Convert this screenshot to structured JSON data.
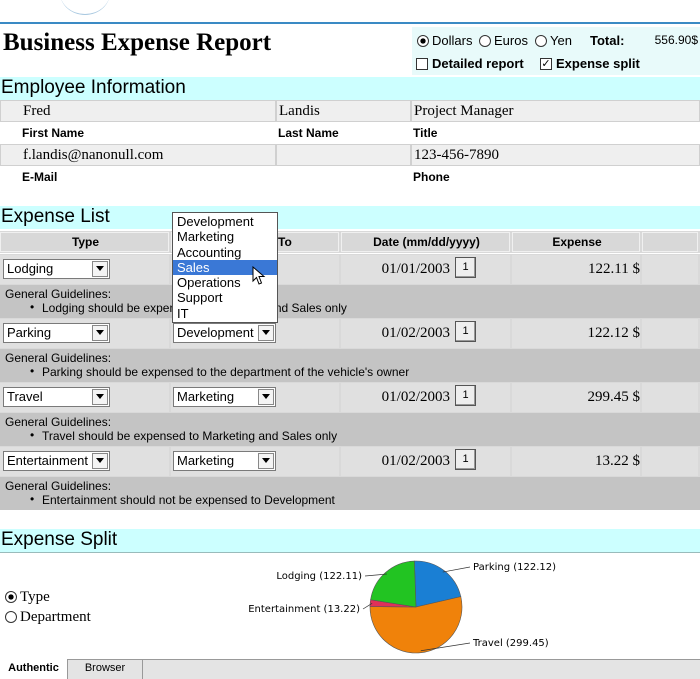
{
  "header": {
    "title": "Business Expense Report",
    "currencies": [
      "Dollars",
      "Euros",
      "Yen"
    ],
    "currency_selected": 0,
    "total_label": "Total:",
    "total": "556.90$",
    "options": [
      "Detailed report",
      "Expense split"
    ],
    "options_checked": [
      false,
      true
    ]
  },
  "employee": {
    "title": "Employee Information",
    "rows": [
      [
        {
          "value": "Fred",
          "label": "First Name"
        },
        {
          "value": "Landis",
          "label": "Last Name"
        },
        {
          "value": "Project Manager",
          "label": "Title"
        }
      ],
      [
        {
          "value": "f.landis@nanonull.com",
          "label": "E-Mail"
        },
        {
          "value": "",
          "label": ""
        },
        {
          "value": "123-456-7890",
          "label": "Phone"
        }
      ]
    ]
  },
  "expense_list": {
    "title": "Expense List",
    "columns": [
      "Type",
      "To",
      "Date (mm/dd/yyyy)",
      "Expense"
    ],
    "calendar_icon": "1",
    "rows": [
      {
        "type": "Lodging",
        "department": null,
        "date": "01/01/2003",
        "amount": "122.11 $",
        "guideline_heading": "General Guidelines:",
        "guideline": "Lodging should be expensed to Marketing and Sales only"
      },
      {
        "type": "Parking",
        "department": "Development",
        "date": "01/02/2003",
        "amount": "122.12 $",
        "guideline_heading": "General Guidelines:",
        "guideline": "Parking should be expensed to the department of the vehicle's owner"
      },
      {
        "type": "Travel",
        "department": "Marketing",
        "date": "01/02/2003",
        "amount": "299.45 $",
        "guideline_heading": "General Guidelines:",
        "guideline": "Travel should be expensed to Marketing and Sales only"
      },
      {
        "type": "Entertainment",
        "department": "Marketing",
        "date": "01/02/2003",
        "amount": "13.22 $",
        "guideline_heading": "General Guidelines:",
        "guideline": "Entertainment should not be expensed to Development"
      }
    ],
    "dropdown": [
      "Development",
      "Marketing",
      "Accounting",
      "Sales",
      "Operations",
      "Support",
      "IT"
    ],
    "dropdown_highlighted": 3
  },
  "expense_split": {
    "title": "Expense Split",
    "radios": [
      "Type",
      "Department"
    ],
    "radio_selected": 0,
    "chart": {
      "type": "pie",
      "labels": [
        "Parking (122.12)",
        "Travel (299.45)",
        "Entertainment (13.22)",
        "Lodging (122.11)"
      ],
      "values": [
        122.12,
        299.45,
        13.22,
        122.11
      ],
      "colors": [
        "#1a7fd4",
        "#f0820a",
        "#e0305a",
        "#22c422"
      ]
    }
  },
  "tabs": [
    "Authentic",
    "Browser"
  ],
  "tab_active": 0
}
